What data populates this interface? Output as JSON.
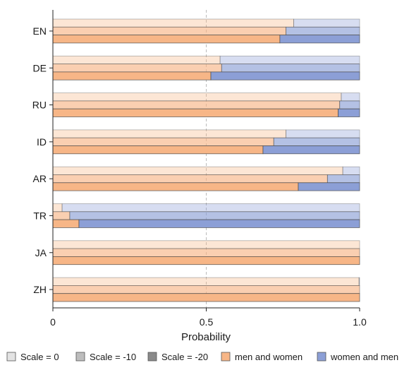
{
  "chart_data": {
    "type": "bar",
    "orientation": "horizontal",
    "stacked": true,
    "categories": [
      "EN",
      "DE",
      "RU",
      "ID",
      "AR",
      "TR",
      "JA",
      "ZH"
    ],
    "xlabel": "Probability",
    "ylabel": "",
    "xlim": [
      0,
      1
    ],
    "xticks": [
      {
        "value": 0,
        "label": "0"
      },
      {
        "value": 0.5,
        "label": "0.5"
      },
      {
        "value": 1,
        "label": "1.0"
      }
    ],
    "reference_line": 0.5,
    "grid": false,
    "legend_position": "bottom",
    "scales": [
      {
        "name": "Scale = 0",
        "men_and_women": [
          0.785,
          0.545,
          0.94,
          0.76,
          0.945,
          0.03,
          1.0,
          0.998
        ]
      },
      {
        "name": "Scale = -10",
        "men_and_women": [
          0.76,
          0.55,
          0.935,
          0.72,
          0.895,
          0.055,
          1.0,
          1.0
        ]
      },
      {
        "name": "Scale = -20",
        "men_and_women": [
          0.74,
          0.515,
          0.93,
          0.685,
          0.8,
          0.085,
          1.0,
          1.0
        ]
      }
    ],
    "series": [
      {
        "name": "men and women",
        "color": "#f7b687"
      },
      {
        "name": "women and men",
        "color": "#8c9fd6"
      }
    ],
    "legend": [
      {
        "label": "Scale = 0",
        "kind": "scale",
        "color": "#e3e3e3"
      },
      {
        "label": "Scale = -10",
        "kind": "scale",
        "color": "#bdbdbd"
      },
      {
        "label": "Scale = -20",
        "kind": "scale",
        "color": "#8a8a8a"
      },
      {
        "label": "men and women",
        "kind": "series",
        "color": "#f7b687"
      },
      {
        "label": "women and men",
        "kind": "series",
        "color": "#8c9fd6"
      }
    ]
  }
}
